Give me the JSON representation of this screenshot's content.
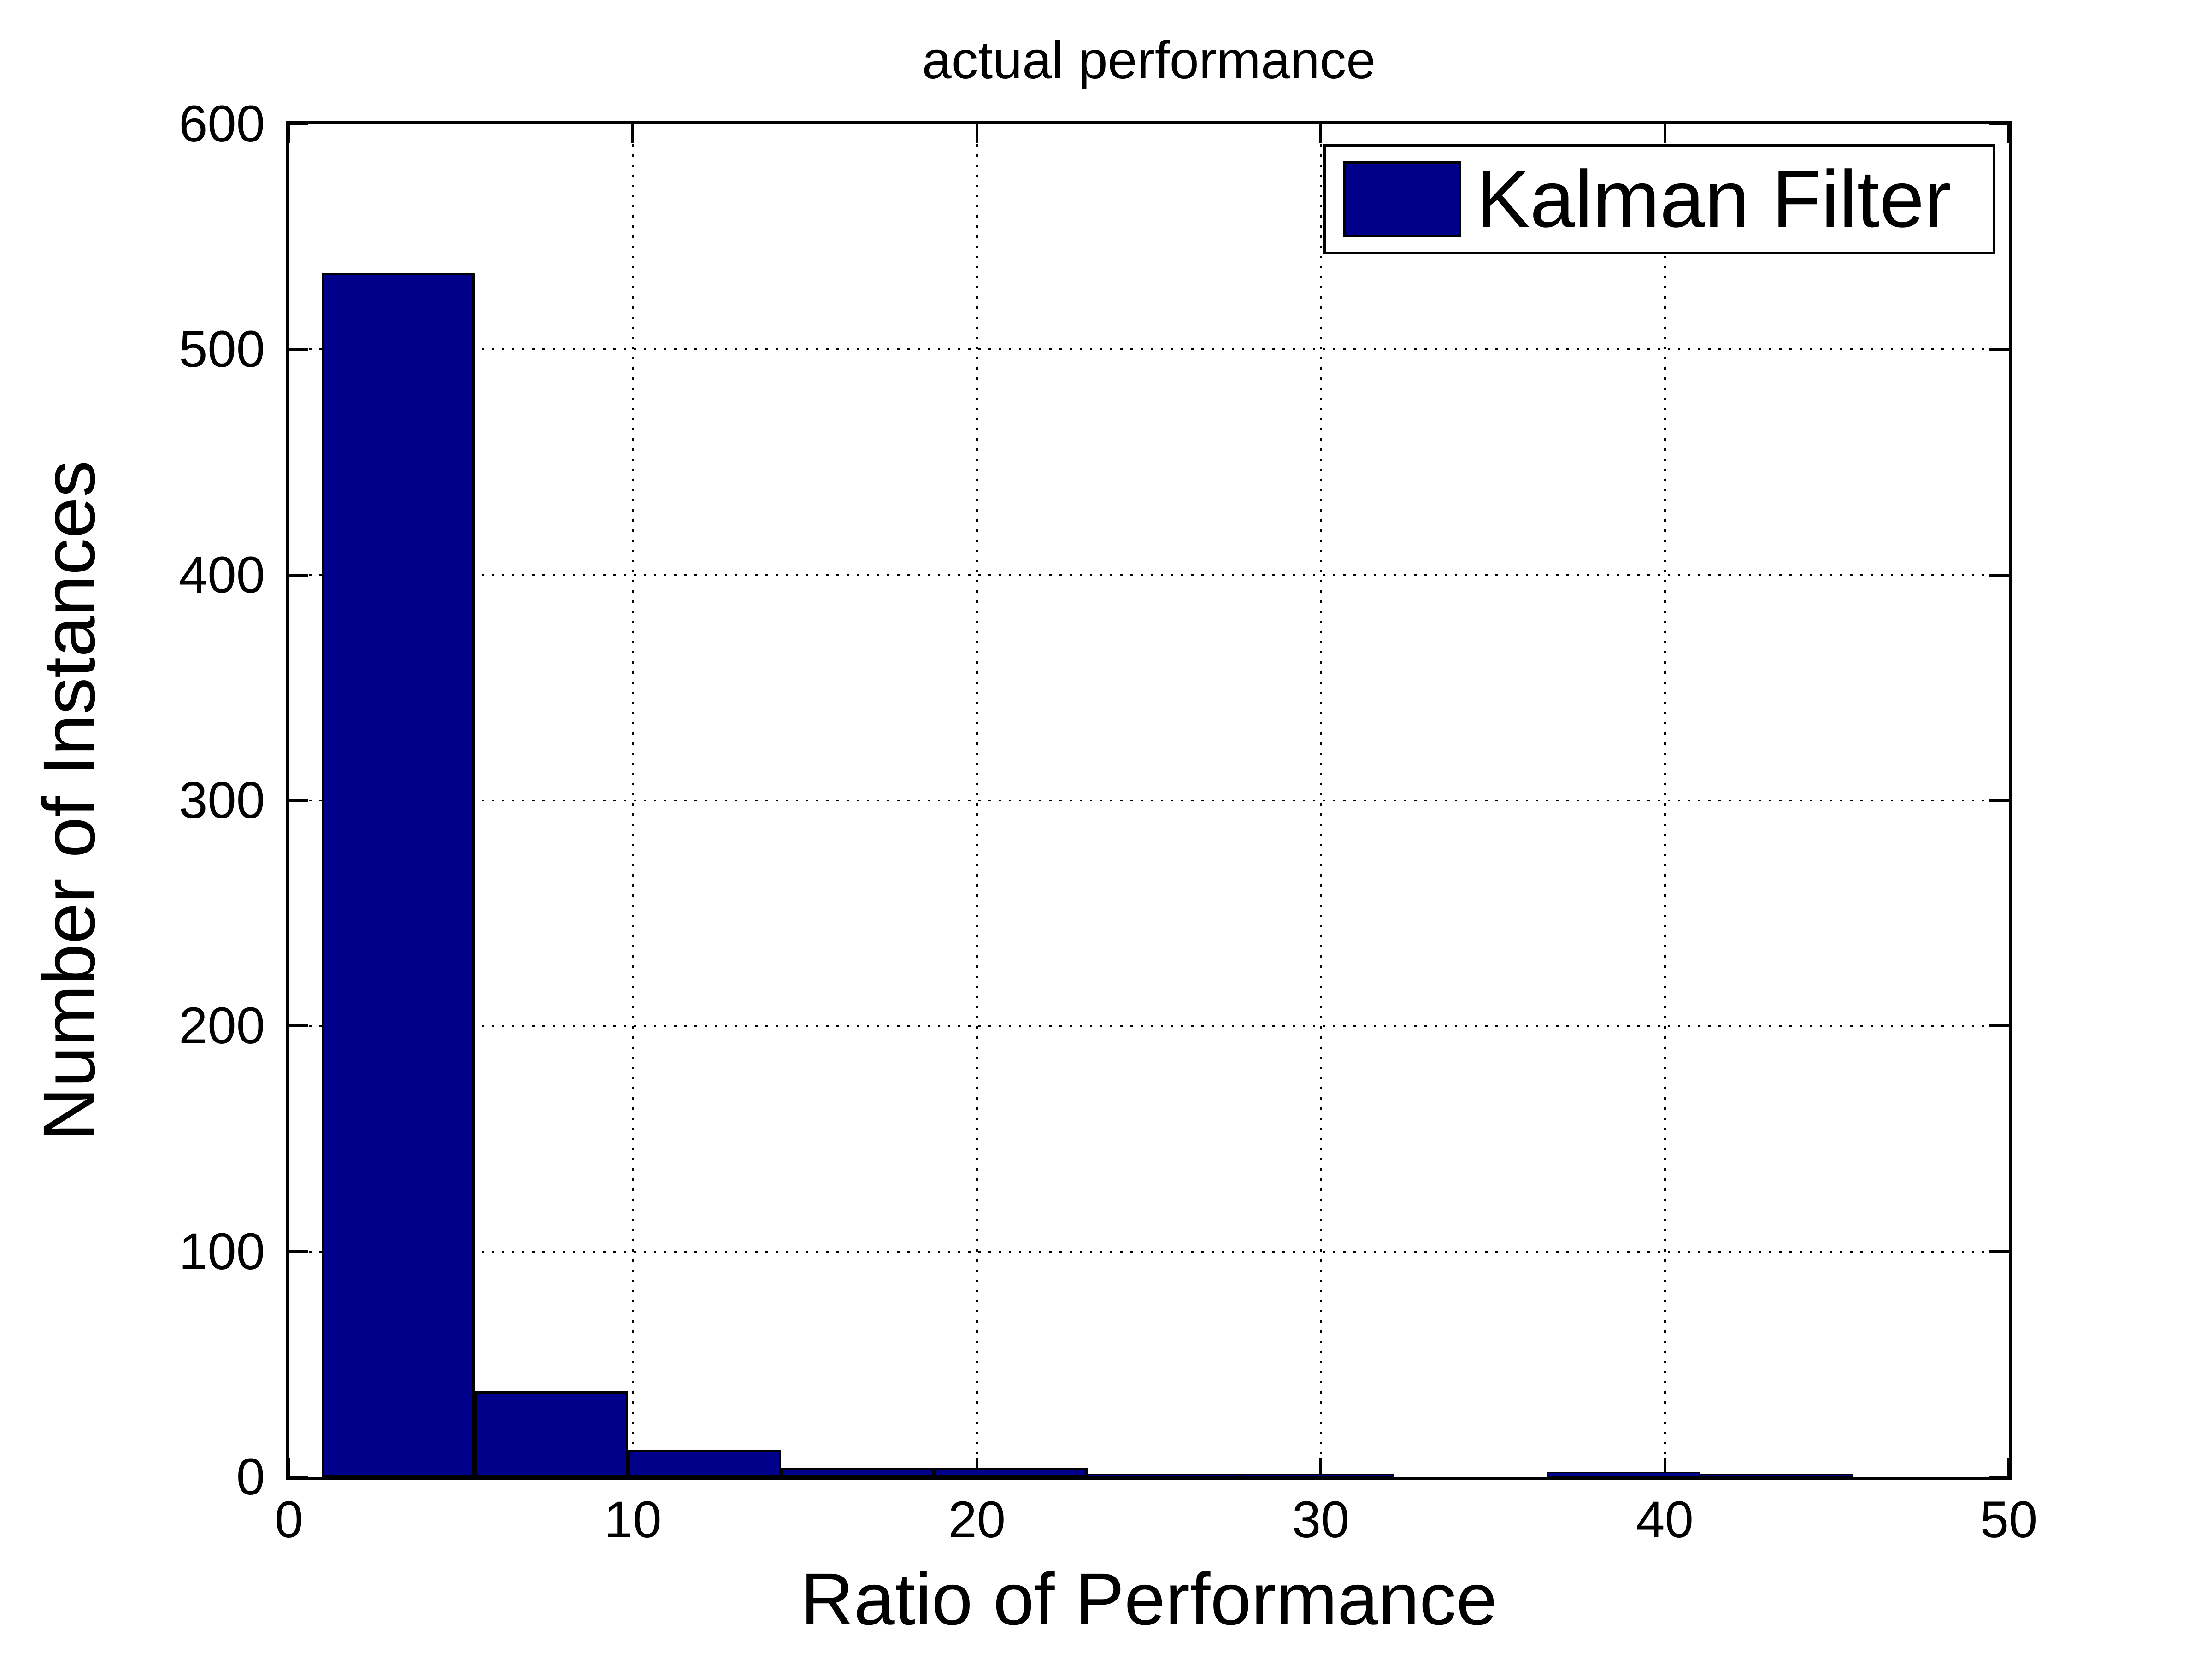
{
  "figure": {
    "title": "actual performance",
    "xlabel": "Ratio of Performance",
    "ylabel": "Number of Instances",
    "background_color": "#ffffff",
    "axis_color": "#000000",
    "grid_color": "#000000"
  },
  "legend": {
    "position": "top-right",
    "entries": [
      {
        "label": "Kalman Filter",
        "swatch_color": "#00008B"
      }
    ]
  },
  "chart_data": {
    "type": "bar",
    "subtype": "histogram",
    "title": "actual performance",
    "xlabel": "Ratio of Performance",
    "ylabel": "Number of Instances",
    "xlim": [
      0,
      50
    ],
    "ylim": [
      0,
      600
    ],
    "xticks": [
      0,
      10,
      20,
      30,
      40,
      50
    ],
    "xtick_labels": [
      "0",
      "10",
      "20",
      "30",
      "40",
      "50"
    ],
    "yticks": [
      0,
      100,
      200,
      300,
      400,
      500,
      600
    ],
    "ytick_labels": [
      "0",
      "100",
      "200",
      "300",
      "400",
      "500",
      "600"
    ],
    "grid": true,
    "grid_style": "dotted",
    "legend_position": "top-right",
    "series_name": "Kalman Filter",
    "bar_color": "#00008B",
    "bar_edge_color": "#000000",
    "bin_width": 4.45,
    "bars": [
      {
        "from": 0.95,
        "to": 5.4,
        "center": 3.18,
        "count": 534
      },
      {
        "from": 5.4,
        "to": 9.86,
        "center": 7.63,
        "count": 38
      },
      {
        "from": 9.86,
        "to": 14.31,
        "center": 12.08,
        "count": 12
      },
      {
        "from": 14.31,
        "to": 18.76,
        "center": 16.54,
        "count": 4
      },
      {
        "from": 18.76,
        "to": 23.22,
        "center": 20.99,
        "count": 4
      },
      {
        "from": 23.22,
        "to": 27.67,
        "center": 25.44,
        "count": 1
      },
      {
        "from": 27.67,
        "to": 32.12,
        "center": 29.9,
        "count": 1
      },
      {
        "from": 32.12,
        "to": 36.58,
        "center": 34.35,
        "count": 0
      },
      {
        "from": 36.58,
        "to": 41.03,
        "center": 38.8,
        "count": 2
      },
      {
        "from": 41.03,
        "to": 45.48,
        "center": 43.26,
        "count": 1
      }
    ]
  }
}
